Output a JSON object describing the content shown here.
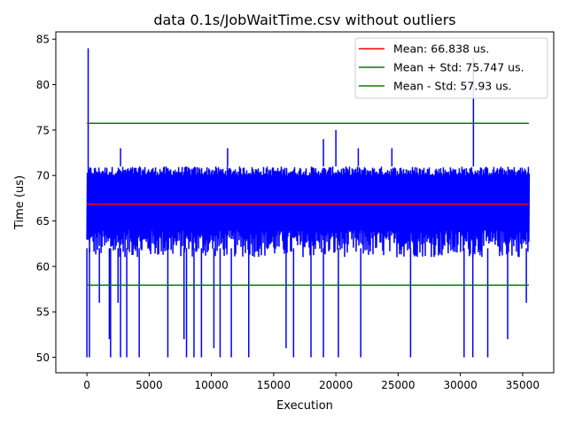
{
  "chart_data": {
    "type": "line",
    "title": "data 0.1s/JobWaitTime.csv without outliers",
    "xlabel": "Execution",
    "ylabel": "Time (us)",
    "xlim": [
      -2500,
      37500
    ],
    "ylim": [
      48.3,
      85.8
    ],
    "x_ticks": [
      0,
      5000,
      10000,
      15000,
      20000,
      25000,
      30000,
      35000
    ],
    "y_ticks": [
      50,
      55,
      60,
      65,
      70,
      75,
      80,
      85
    ],
    "x_tick_labels": [
      "0",
      "5000",
      "10000",
      "15000",
      "20000",
      "25000",
      "30000",
      "35000"
    ],
    "y_tick_labels": [
      "50",
      "55",
      "60",
      "65",
      "70",
      "75",
      "80",
      "85"
    ],
    "grid": false,
    "legend_position": "top-right",
    "series": [
      {
        "name": "",
        "color": "#0000ff",
        "kind": "noisy-trace",
        "n_points": 35500,
        "x_range": [
          0,
          35500
        ],
        "band_low": 61,
        "band_high": 71,
        "dense_low": 64,
        "dense_high": 70,
        "min": 50,
        "max": 84,
        "spikes": [
          {
            "x": 0,
            "y": 50
          },
          {
            "x": 100,
            "y": 84
          },
          {
            "x": 200,
            "y": 50
          },
          {
            "x": 1000,
            "y": 56
          },
          {
            "x": 1800,
            "y": 52
          },
          {
            "x": 1900,
            "y": 50
          },
          {
            "x": 2500,
            "y": 56
          },
          {
            "x": 2700,
            "y": 50
          },
          {
            "x": 3200,
            "y": 50
          },
          {
            "x": 4200,
            "y": 50
          },
          {
            "x": 6500,
            "y": 50
          },
          {
            "x": 7800,
            "y": 52
          },
          {
            "x": 8000,
            "y": 50
          },
          {
            "x": 8600,
            "y": 50
          },
          {
            "x": 9200,
            "y": 50
          },
          {
            "x": 10200,
            "y": 51
          },
          {
            "x": 10700,
            "y": 50
          },
          {
            "x": 11600,
            "y": 50
          },
          {
            "x": 13000,
            "y": 50
          },
          {
            "x": 16000,
            "y": 51
          },
          {
            "x": 16600,
            "y": 50
          },
          {
            "x": 18000,
            "y": 50
          },
          {
            "x": 19000,
            "y": 50
          },
          {
            "x": 20200,
            "y": 50
          },
          {
            "x": 22000,
            "y": 50
          },
          {
            "x": 26000,
            "y": 50
          },
          {
            "x": 30300,
            "y": 50
          },
          {
            "x": 31000,
            "y": 50
          },
          {
            "x": 31050,
            "y": 83
          },
          {
            "x": 32200,
            "y": 50
          },
          {
            "x": 33800,
            "y": 52
          },
          {
            "x": 35300,
            "y": 56
          },
          {
            "x": 19000,
            "y": 74
          },
          {
            "x": 20000,
            "y": 75
          },
          {
            "x": 2700,
            "y": 73
          },
          {
            "x": 11300,
            "y": 73
          },
          {
            "x": 21800,
            "y": 73
          },
          {
            "x": 24500,
            "y": 73
          }
        ]
      },
      {
        "name": "Mean: 66.838 us.",
        "color": "#ff0000",
        "kind": "hline",
        "y": 66.838,
        "x_range": [
          0,
          35500
        ]
      },
      {
        "name": "Mean + Std:  75.747 us.",
        "color": "#008000",
        "kind": "hline",
        "y": 75.747,
        "x_range": [
          0,
          35500
        ]
      },
      {
        "name": "Mean - Std:  57.93 us.",
        "color": "#008000",
        "kind": "hline",
        "y": 57.93,
        "x_range": [
          0,
          35500
        ]
      }
    ]
  }
}
